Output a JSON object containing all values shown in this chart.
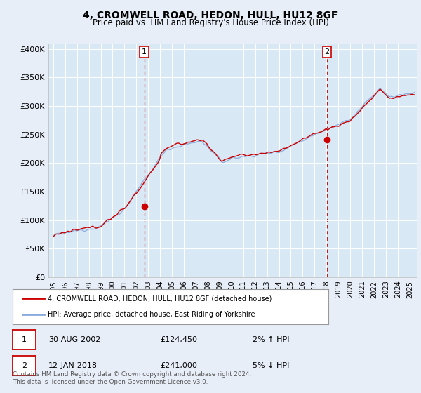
{
  "title": "4, CROMWELL ROAD, HEDON, HULL, HU12 8GF",
  "subtitle": "Price paid vs. HM Land Registry's House Price Index (HPI)",
  "ylabel_ticks": [
    "£0",
    "£50K",
    "£100K",
    "£150K",
    "£200K",
    "£250K",
    "£300K",
    "£350K",
    "£400K"
  ],
  "ytick_vals": [
    0,
    50000,
    100000,
    150000,
    200000,
    250000,
    300000,
    350000,
    400000
  ],
  "ylim": [
    0,
    410000
  ],
  "xlim_start": 1994.6,
  "xlim_end": 2025.6,
  "price_paid_color": "#cc0000",
  "hpi_color": "#88aadd",
  "marker1_x": 2002.66,
  "marker1_y": 124450,
  "marker2_x": 2018.04,
  "marker2_y": 241000,
  "legend_label1": "4, CROMWELL ROAD, HEDON, HULL, HU12 8GF (detached house)",
  "legend_label2": "HPI: Average price, detached house, East Riding of Yorkshire",
  "table_row1": [
    "1",
    "30-AUG-2002",
    "£124,450",
    "2% ↑ HPI"
  ],
  "table_row2": [
    "2",
    "12-JAN-2018",
    "£241,000",
    "5% ↓ HPI"
  ],
  "footer": "Contains HM Land Registry data © Crown copyright and database right 2024.\nThis data is licensed under the Open Government Licence v3.0.",
  "background_color": "#e8eef8",
  "plot_bg_color": "#d8e8f4"
}
